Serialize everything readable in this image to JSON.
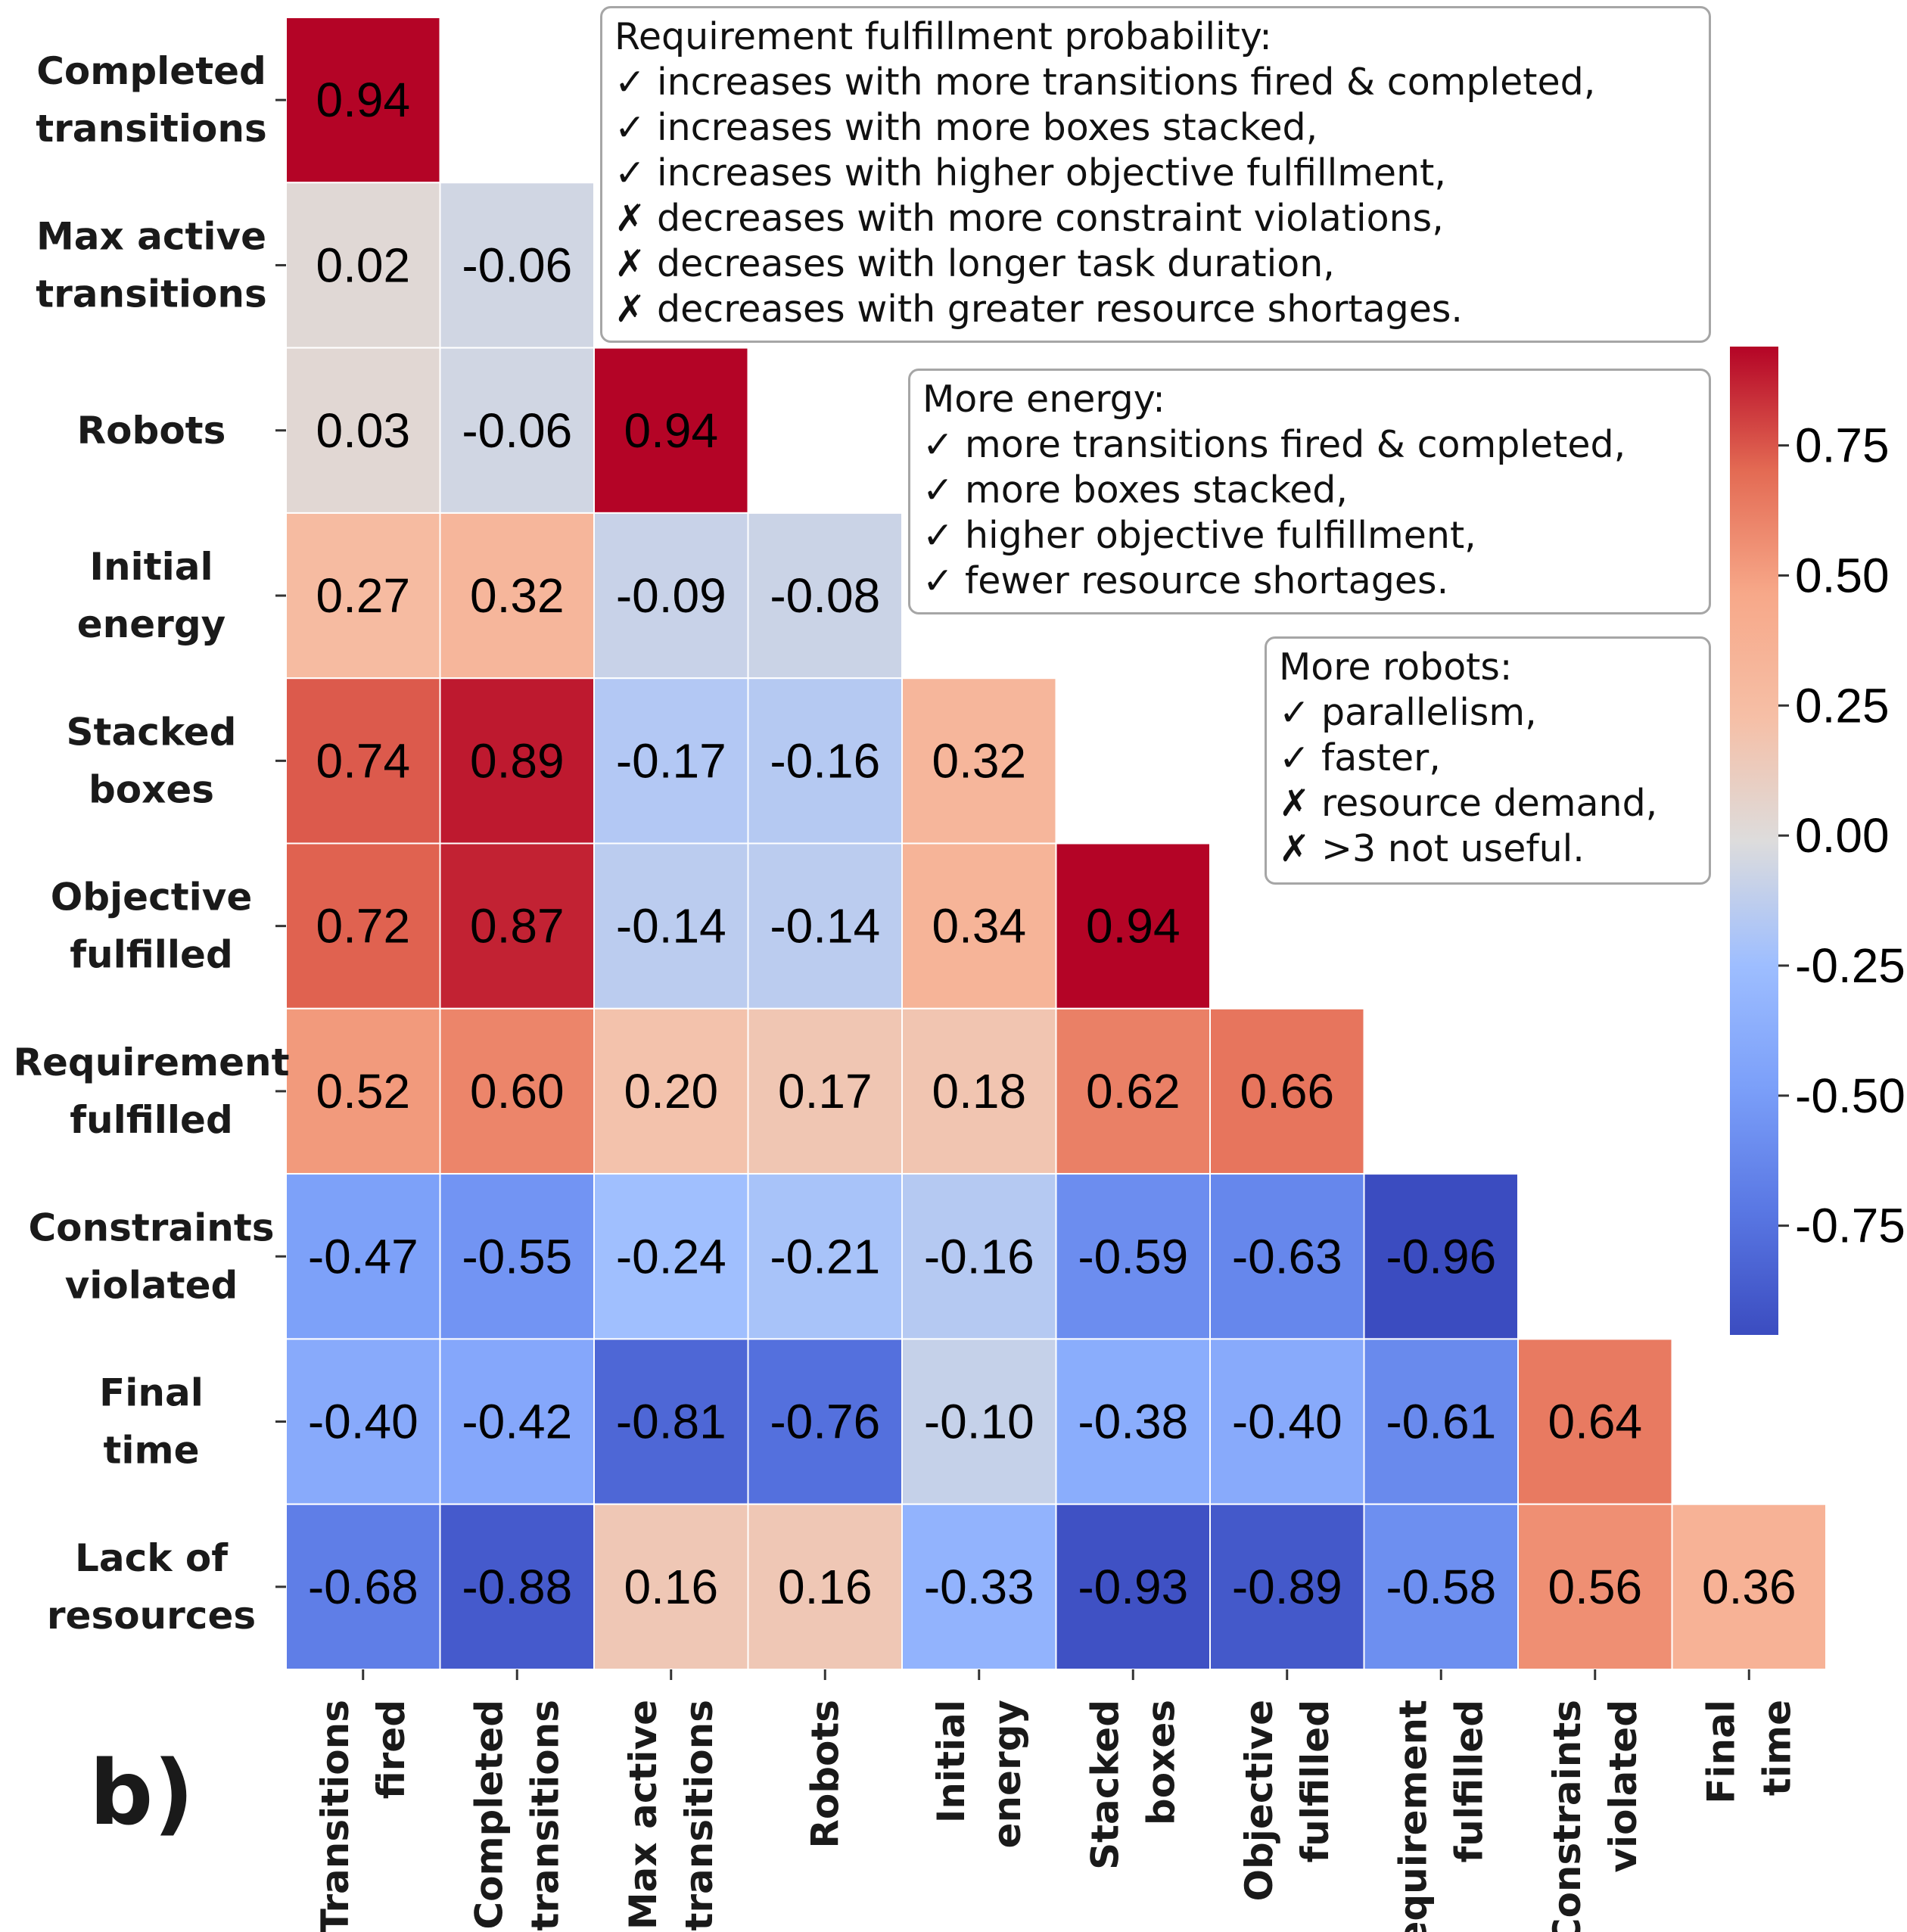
{
  "chart_data": {
    "type": "heatmap",
    "panel_label": "b)",
    "row_labels": [
      [
        "Completed",
        "transitions"
      ],
      [
        "Max active",
        "transitions"
      ],
      [
        "Robots"
      ],
      [
        "Initial",
        "energy"
      ],
      [
        "Stacked",
        "boxes"
      ],
      [
        "Objective",
        "fulfilled"
      ],
      [
        "Requirement",
        "fulfilled"
      ],
      [
        "Constraints",
        "violated"
      ],
      [
        "Final",
        "time"
      ],
      [
        "Lack of",
        "resources"
      ]
    ],
    "column_labels": [
      [
        "Transitions",
        "fired"
      ],
      [
        "Completed",
        "transitions"
      ],
      [
        "Max active",
        "transitions"
      ],
      [
        "Robots"
      ],
      [
        "Initial",
        "energy"
      ],
      [
        "Stacked",
        "boxes"
      ],
      [
        "Objective",
        "fulfilled"
      ],
      [
        "Requirement",
        "fulfilled"
      ],
      [
        "Constraints",
        "violated"
      ],
      [
        "Final",
        "time"
      ]
    ],
    "values": [
      [
        0.94
      ],
      [
        0.02,
        -0.06
      ],
      [
        0.03,
        -0.06,
        0.94
      ],
      [
        0.27,
        0.32,
        -0.09,
        -0.08
      ],
      [
        0.74,
        0.89,
        -0.17,
        -0.16,
        0.32
      ],
      [
        0.72,
        0.87,
        -0.14,
        -0.14,
        0.34,
        0.94
      ],
      [
        0.52,
        0.6,
        0.2,
        0.17,
        0.18,
        0.62,
        0.66
      ],
      [
        -0.47,
        -0.55,
        -0.24,
        -0.21,
        -0.16,
        -0.59,
        -0.63,
        -0.96
      ],
      [
        -0.4,
        -0.42,
        -0.81,
        -0.76,
        -0.1,
        -0.38,
        -0.4,
        -0.61,
        0.64
      ],
      [
        -0.68,
        -0.88,
        0.16,
        0.16,
        -0.33,
        -0.93,
        -0.89,
        -0.58,
        0.56,
        0.36
      ]
    ],
    "value_labels": [
      [
        "0.94"
      ],
      [
        "0.02",
        "-0.06"
      ],
      [
        "0.03",
        "-0.06",
        "0.94"
      ],
      [
        "0.27",
        "0.32",
        "-0.09",
        "-0.08"
      ],
      [
        "0.74",
        "0.89",
        "-0.17",
        "-0.16",
        "0.32"
      ],
      [
        "0.72",
        "0.87",
        "-0.14",
        "-0.14",
        "0.34",
        "0.94"
      ],
      [
        "0.52",
        "0.60",
        "0.20",
        "0.17",
        "0.18",
        "0.62",
        "0.66"
      ],
      [
        "-0.47",
        "-0.55",
        "-0.24",
        "-0.21",
        "-0.16",
        "-0.59",
        "-0.63",
        "-0.96"
      ],
      [
        "-0.40",
        "-0.42",
        "-0.81",
        "-0.76",
        "-0.10",
        "-0.38",
        "-0.40",
        "-0.61",
        "0.64"
      ],
      [
        "-0.68",
        "-0.88",
        "0.16",
        "0.16",
        "-0.33",
        "-0.93",
        "-0.89",
        "-0.58",
        "0.56",
        "0.36"
      ]
    ],
    "colormap": "coolwarm",
    "vmin": -0.96,
    "vmax": 0.94,
    "colorbar": {
      "ticks": [
        0.75,
        0.5,
        0.25,
        0.0,
        -0.25,
        -0.5,
        -0.75
      ],
      "tick_labels": [
        "0.75",
        "0.50",
        "0.25",
        "0.00",
        "-0.25",
        "-0.50",
        "-0.75"
      ],
      "placement": "right"
    },
    "annotations": [
      {
        "name": "requirement-note",
        "title": "Requirement fulfillment probability:",
        "lines": [
          {
            "mark": "✓",
            "text": "increases with more transitions fired & completed,"
          },
          {
            "mark": "✓",
            "text": "increases with more boxes stacked,"
          },
          {
            "mark": "✓",
            "text": "increases with higher objective fulfillment,"
          },
          {
            "mark": "✗",
            "text": "decreases with more constraint violations,"
          },
          {
            "mark": "✗",
            "text": "decreases with longer task duration,"
          },
          {
            "mark": "✗",
            "text": "decreases with greater resource shortages."
          }
        ]
      },
      {
        "name": "energy-note",
        "title": "More energy:",
        "lines": [
          {
            "mark": "✓",
            "text": "more transitions fired & completed,"
          },
          {
            "mark": "✓",
            "text": "more boxes stacked,"
          },
          {
            "mark": "✓",
            "text": "higher objective fulfillment,"
          },
          {
            "mark": "✓",
            "text": "fewer resource shortages."
          }
        ]
      },
      {
        "name": "robots-note",
        "title": "More robots:",
        "lines": [
          {
            "mark": "✓",
            "text": "parallelism,"
          },
          {
            "mark": "✓",
            "text": "faster,"
          },
          {
            "mark": "✗",
            "text": "resource demand,"
          },
          {
            "mark": "✗",
            "text": ">3 not useful."
          }
        ]
      }
    ]
  }
}
